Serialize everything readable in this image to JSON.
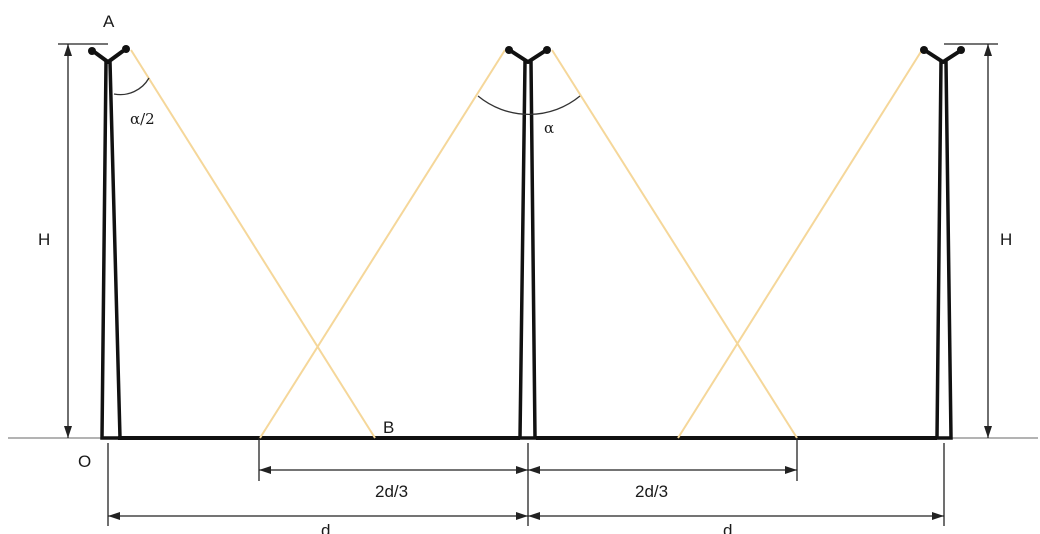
{
  "labels": {
    "point_a": "A",
    "point_b": "B",
    "point_o": "O",
    "height_left": "H",
    "height_right": "H",
    "half_angle": "α/2",
    "angle": "α",
    "two_thirds_left": "2d/3",
    "two_thirds_right": "2d/3",
    "spacing_left": "d",
    "spacing_right": "d"
  },
  "colors": {
    "structure": "#111111",
    "light_beam": "#f5d79a",
    "ground": "#9a9a9a",
    "dimension": "#222222"
  }
}
